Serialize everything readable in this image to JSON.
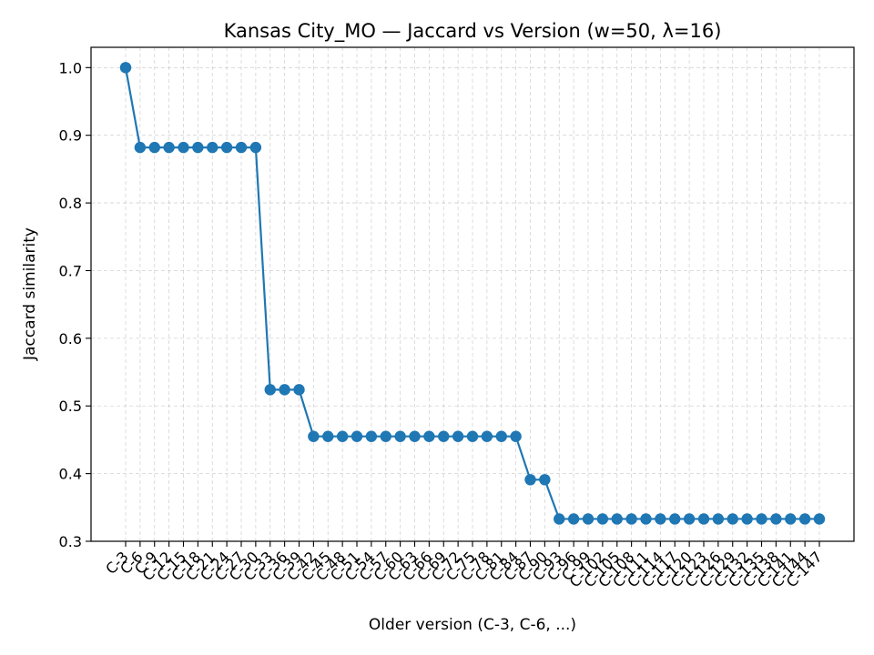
{
  "chart_data": {
    "type": "line",
    "title": "Kansas City_MO — Jaccard vs Version (w=50, λ=16)",
    "xlabel": "Older version (C-3, C-6, ...)",
    "ylabel": "Jaccard similarity",
    "ylim": [
      0.3,
      1.03
    ],
    "yticks": [
      "0.3",
      "0.4",
      "0.5",
      "0.6",
      "0.7",
      "0.8",
      "0.9",
      "1.0"
    ],
    "grid": true,
    "categories": [
      "C-3",
      "C-6",
      "C-9",
      "C-12",
      "C-15",
      "C-18",
      "C-21",
      "C-24",
      "C-27",
      "C-30",
      "C-33",
      "C-36",
      "C-39",
      "C-42",
      "C-45",
      "C-48",
      "C-51",
      "C-54",
      "C-57",
      "C-60",
      "C-63",
      "C-66",
      "C-69",
      "C-72",
      "C-75",
      "C-78",
      "C-81",
      "C-84",
      "C-87",
      "C-90",
      "C-93",
      "C-96",
      "C-99",
      "C-102",
      "C-105",
      "C-108",
      "C-111",
      "C-114",
      "C-117",
      "C-120",
      "C-123",
      "C-126",
      "C-129",
      "C-132",
      "C-135",
      "C-138",
      "C-141",
      "C-144",
      "C-147"
    ],
    "values": [
      1.0,
      0.882,
      0.882,
      0.882,
      0.882,
      0.882,
      0.882,
      0.882,
      0.882,
      0.882,
      0.524,
      0.524,
      0.524,
      0.455,
      0.455,
      0.455,
      0.455,
      0.455,
      0.455,
      0.455,
      0.455,
      0.455,
      0.455,
      0.455,
      0.455,
      0.455,
      0.455,
      0.455,
      0.391,
      0.391,
      0.333,
      0.333,
      0.333,
      0.333,
      0.333,
      0.333,
      0.333,
      0.333,
      0.333,
      0.333,
      0.333,
      0.333,
      0.333,
      0.333,
      0.333,
      0.333,
      0.333,
      0.333,
      0.333
    ],
    "color": "#1f77b4"
  }
}
